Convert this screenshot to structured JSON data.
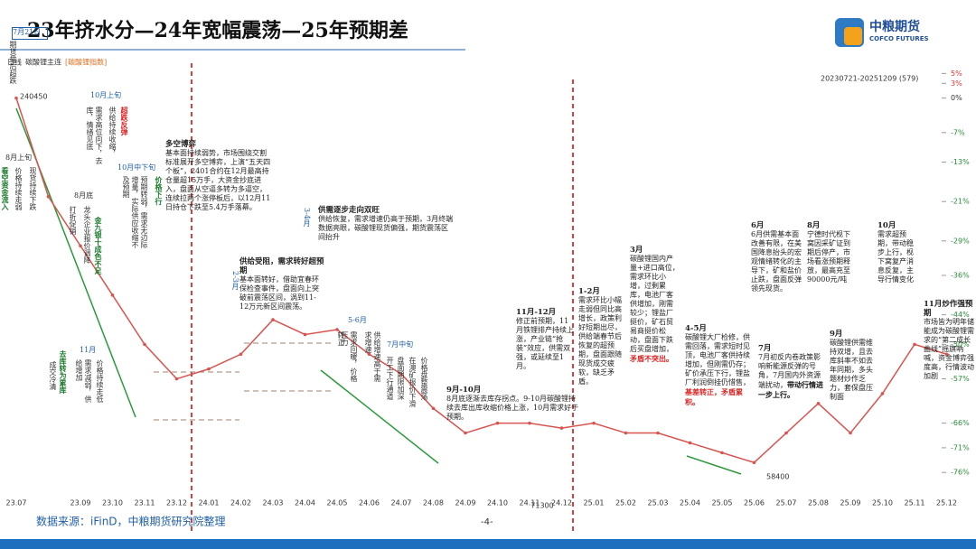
{
  "header": {
    "title": "23年挤水分—24年宽幅震荡—25年预期差",
    "logo": "中粮期货",
    "logo_en": "COFCO FUTURES"
  },
  "footer": {
    "source": "数据来源：iFinD，中粮期货研究院整理",
    "page": "-4-"
  },
  "chart_data": {
    "type": "line",
    "title": "碳酸锂主连",
    "subtitle": "[碳酸锂指数]",
    "period": "日线",
    "range_label": "20230721-20251209 (579)",
    "categories": [
      "23.07",
      null,
      "23.09",
      "23.10",
      "23.11",
      "23.12",
      "24.01",
      "24.02",
      "24.03",
      "24.04",
      "24.05",
      "24.06",
      "24.07",
      "24.08",
      "24.09",
      "24.10",
      "24.11",
      "24.12",
      "25.01",
      "25.02",
      "25.03",
      "25.04",
      "25.05",
      "25.06",
      "25.07",
      "25.08",
      "25.09",
      "25.10",
      "25.11",
      "25.12"
    ],
    "values": [
      0,
      -20,
      -30,
      -40,
      -50,
      -57,
      -55,
      -52,
      -45,
      -48,
      -47,
      -52,
      -56,
      -63,
      -68,
      -66,
      -66,
      -67,
      -66,
      -68,
      -68,
      -70,
      -72,
      -74,
      -68,
      -62,
      -68,
      -60,
      -50,
      -52
    ],
    "color": "#d9534f",
    "ylim": [
      -80,
      8
    ],
    "yticks": [
      {
        "value": 5,
        "label": "5%"
      },
      {
        "value": 3,
        "label": "3%"
      },
      {
        "value": 0,
        "label": "0%"
      },
      {
        "value": -7,
        "label": "-7%"
      },
      {
        "value": -13,
        "label": "-13%"
      },
      {
        "value": -21,
        "label": "-21%"
      },
      {
        "value": -29,
        "label": "-29%"
      },
      {
        "value": -36,
        "label": "-36%"
      },
      {
        "value": -44,
        "label": "-44%"
      },
      {
        "value": -50,
        "label": "-50%"
      },
      {
        "value": -57,
        "label": "-57%"
      },
      {
        "value": -66,
        "label": "-66%"
      },
      {
        "value": -71,
        "label": "-71%"
      },
      {
        "value": -76,
        "label": "-76%"
      }
    ],
    "price_markers": [
      240450,
      58400,
      71300
    ],
    "annotations": [
      {
        "text": "7月21日"
      },
      {
        "text": "期货盘后超跌"
      },
      {
        "text": "8月上旬"
      },
      {
        "text": "看空资金流入"
      },
      {
        "text": "价格持续走弱"
      },
      {
        "text": "现货持续下跌"
      },
      {
        "text": "8月底"
      },
      {
        "text": "打折促销"
      },
      {
        "text": "龙头企业报价调降"
      },
      {
        "text": "金九银十成色不足"
      },
      {
        "text": "10月上旬"
      },
      {
        "text": "需求高位向下，去库，情绪见底"
      },
      {
        "text": "供给持续收缩，"
      },
      {
        "text": "超跌反弹"
      },
      {
        "text": "10月中下旬"
      },
      {
        "text": "预期转弱，需求无边际增量，实际供应收缩不及预期"
      },
      {
        "text": "价格下行"
      },
      {
        "text": "11月"
      },
      {
        "text": "成交冷清"
      },
      {
        "text": "去库转为累库"
      },
      {
        "text": "需求减弱，供给增加"
      },
      {
        "text": "价格持续走低"
      },
      {
        "heading": "多空博弈",
        "text": "基本面持续弱势，市场围绕交割标准展开多空博弈，上演“五天四个板”，2401合约在12月最高持仓量超15万手，大资金抄底进入，盘面从空逼多转为多逼空，连续拉两个涨停板后，以12月11日持仓下跌至5.4万手落幕。"
      },
      {
        "text": "3-4月"
      },
      {
        "heading": "供需逐步走向双旺",
        "text": "供给恢复，需求增速仍高于预期，3月终端数据亮眼，碳酸锂现货偏强，期货震荡区间抬升"
      },
      {
        "text": "2-3月"
      },
      {
        "heading": "供给受阻，需求转好超预期",
        "text": "基本面转好，借助宜春环保检查事件，盘面向上突破前震荡区间，涡到11-12万元新区间震荡。"
      },
      {
        "text": "5-6月"
      },
      {
        "text": "转正"
      },
      {
        "text": "需求回暖，价格压力"
      },
      {
        "text": "供给增速高于需求增速"
      },
      {
        "text": "7月中旬"
      },
      {
        "text": "开工下行通道"
      },
      {
        "text": "盘面期限加深"
      },
      {
        "text": "在澳矿报价下滑"
      },
      {
        "text": "价格盘整震荡"
      },
      {
        "heading": "9月-10月",
        "text": "8月底逐渐去库存拐点。9-10月碳酸锂持续去库出库收缩价格上涨，10月需求好于预期。"
      },
      {
        "heading": "11月-12月",
        "text": "修正前预期，11月铁锂排产持续上涨，产业链“抢装”效应，供需双强，或延续至1月。"
      },
      {
        "heading": "1-2月",
        "text": "需求环比小幅走弱但同比高增长，政策利好短期出尽，供给端春节后恢复的超预期，盘面跟随现货成交疲软，缺乏矛盾。"
      },
      {
        "heading": "3月",
        "text": "碳酸锂国内产量+进口高位，需求环比小增，过剩累库，电池厂客供增加，刚需较少；锂盐厂挺价，矿石贸易商挺价松动，盘面下跌后买盘增加，",
        "tail": "矛盾不突出。"
      },
      {
        "heading": "4-5月",
        "text": "碳酸锂大厂检修，供需回落，需求短时见顶，电池厂客供持续增加，但刚需仍存；矿价承压下行，锂盐厂利润倒挂仍惜售，",
        "tail": "基差转正，矛盾累积。"
      },
      {
        "heading": "7月",
        "text": "7月初反内卷政策影响新能源反弹的号角，7月国内外资源端扰动，",
        "tail": "带动行情进一步上行。"
      },
      {
        "heading": "6月",
        "text": "6月供需基本面改善有限，在美国降息抬头的宏观情绪转化的主导下，矿和盐价止跌，盘面反弹领先现货。"
      },
      {
        "heading": "8月",
        "text": "宁德时代枧下窝因采矿证到期后停产，市场看涨预期释放，最高充至90000元/吨"
      },
      {
        "heading": "9月",
        "text": "碳酸锂供需维持双增，且去库斜率不如去年同期，多头题材炒作乏力，套保盘压制面"
      },
      {
        "heading": "10月",
        "text": "需求超预期，带动稳步上行，枧下窝复产消息反复，主导行情变化"
      },
      {
        "heading": "11月炒作强预期",
        "text": "市场皆为明年储能成为碳酸锂需求的“第二成长曲线”摇旗呐喊，资金博弈强度高，行情波动加剧"
      }
    ]
  }
}
